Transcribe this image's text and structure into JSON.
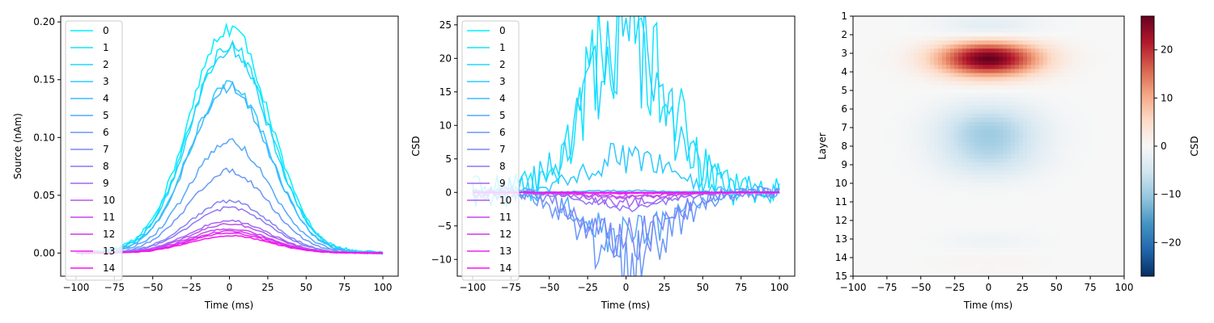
{
  "chart_data": [
    {
      "type": "line",
      "xlabel": "Time (ms)",
      "ylabel": "Source (nAm)",
      "xlim": [
        -110,
        110
      ],
      "ylim": [
        -0.02,
        0.205
      ],
      "xticks": [
        -100,
        -75,
        -50,
        -25,
        0,
        25,
        50,
        75,
        100
      ],
      "yticks": [
        0.0,
        0.05,
        0.1,
        0.15,
        0.2
      ],
      "ytick_labels": [
        "0.00",
        "0.05",
        "0.10",
        "0.15",
        "0.20"
      ],
      "legend": "upper-left",
      "grid": false,
      "noise_scale": 0.03,
      "curve_sigma_ms": 26,
      "series": [
        {
          "name": "0",
          "peak": 0.195,
          "color": "#00f0ff"
        },
        {
          "name": "1",
          "peak": 0.18,
          "color": "#10e4ff"
        },
        {
          "name": "2",
          "peak": 0.177,
          "color": "#1fd6ff"
        },
        {
          "name": "3",
          "peak": 0.146,
          "color": "#2fc8ff"
        },
        {
          "name": "4",
          "peak": 0.143,
          "color": "#40b8fd"
        },
        {
          "name": "5",
          "peak": 0.096,
          "color": "#55a8fb"
        },
        {
          "name": "6",
          "peak": 0.071,
          "color": "#6a97f8"
        },
        {
          "name": "7",
          "peak": 0.045,
          "color": "#7f86f6"
        },
        {
          "name": "8",
          "peak": 0.039,
          "color": "#9176f3"
        },
        {
          "name": "9",
          "peak": 0.028,
          "color": "#a465f2"
        },
        {
          "name": "10",
          "peak": 0.025,
          "color": "#b655f0"
        },
        {
          "name": "11",
          "peak": 0.021,
          "color": "#c745ef"
        },
        {
          "name": "12",
          "peak": 0.019,
          "color": "#d635ee"
        },
        {
          "name": "13",
          "peak": 0.017,
          "color": "#e825ee"
        },
        {
          "name": "14",
          "peak": 0.015,
          "color": "#f812f0"
        }
      ]
    },
    {
      "type": "line",
      "xlabel": "Time (ms)",
      "ylabel": "CSD",
      "xlim": [
        -110,
        110
      ],
      "ylim": [
        -12.5,
        26.3
      ],
      "xticks": [
        -100,
        -75,
        -50,
        -25,
        0,
        25,
        50,
        75,
        100
      ],
      "yticks": [
        -10,
        -5,
        0,
        5,
        10,
        15,
        20,
        25
      ],
      "ytick_labels": [
        "−10",
        "−5",
        "0",
        "5",
        "10",
        "15",
        "20",
        "25"
      ],
      "legend": "upper-left",
      "grid": false,
      "noise_scale": 0.4,
      "curve_sigma_ms": 26,
      "series": [
        {
          "name": "0",
          "peak": 0.0,
          "color": "#00f0ff"
        },
        {
          "name": "1",
          "peak": 24.5,
          "color": "#10e4ff"
        },
        {
          "name": "2",
          "peak": 21.8,
          "color": "#1fd6ff"
        },
        {
          "name": "3",
          "peak": 5.5,
          "color": "#2fc8ff"
        },
        {
          "name": "4",
          "peak": 0.3,
          "color": "#40b8fd"
        },
        {
          "name": "5",
          "peak": -6.8,
          "color": "#55a8fb"
        },
        {
          "name": "6",
          "peak": -10.4,
          "color": "#6a97f8"
        },
        {
          "name": "7",
          "peak": -7.3,
          "color": "#7f86f6"
        },
        {
          "name": "8",
          "peak": -2.0,
          "color": "#9176f3"
        },
        {
          "name": "9",
          "peak": -1.5,
          "color": "#a465f2"
        },
        {
          "name": "10",
          "peak": -0.7,
          "color": "#b655f0"
        },
        {
          "name": "11",
          "peak": -0.6,
          "color": "#c745ef"
        },
        {
          "name": "12",
          "peak": -0.2,
          "color": "#d635ee"
        },
        {
          "name": "13",
          "peak": -0.1,
          "color": "#e825ee"
        },
        {
          "name": "14",
          "peak": 0.0,
          "color": "#f812f0"
        }
      ]
    },
    {
      "type": "heatmap",
      "xlabel": "Time (ms)",
      "ylabel": "Layer",
      "xlim": [
        -100,
        100
      ],
      "xticks": [
        -100,
        -75,
        -50,
        -25,
        0,
        25,
        50,
        75,
        100
      ],
      "xtick_labels": [
        "−100",
        "−75",
        "−50",
        "−25",
        "0",
        "25",
        "50",
        "75",
        "100"
      ],
      "yticks": [
        "1",
        "2",
        "3",
        "4",
        "5",
        "6",
        "7",
        "8",
        "9",
        "10",
        "11",
        "12",
        "13",
        "14",
        "15"
      ],
      "colormap": "RdBu_r",
      "colorbar": {
        "label": "CSD",
        "vmin": -27,
        "vmax": 27,
        "ticks": [
          -20,
          -10,
          0,
          10,
          20
        ],
        "tick_labels": [
          "−20",
          "−10",
          "0",
          "10",
          "20"
        ]
      },
      "curve_sigma_ms": 26,
      "layer_profile": [
        {
          "layer": 1.7,
          "value": -3.5,
          "width": 0.55
        },
        {
          "layer": 3.3,
          "value": 27,
          "width": 0.65
        },
        {
          "layer": 7.2,
          "value": -9,
          "width": 1.0
        },
        {
          "layer": 8.8,
          "value": -4,
          "width": 0.8
        },
        {
          "layer": 13.1,
          "value": -1.2,
          "width": 0.4
        },
        {
          "layer": 14.2,
          "value": 0.6,
          "width": 0.4
        }
      ]
    }
  ]
}
